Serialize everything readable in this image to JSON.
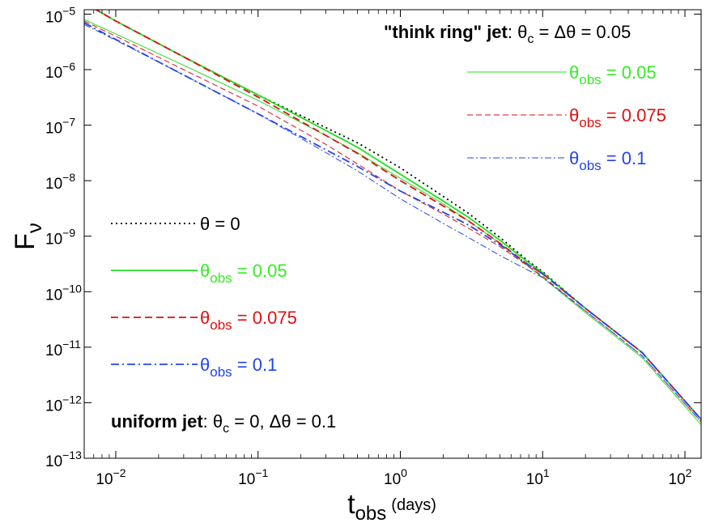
{
  "chart_data": {
    "type": "line",
    "xscale": "log",
    "yscale": "log",
    "xlim": [
      0.006,
      130
    ],
    "ylim": [
      1e-13,
      1.2e-05
    ],
    "xlabel": {
      "main": "t",
      "sub": "obs",
      "unit": "(days)"
    },
    "ylabel": {
      "main": "F",
      "sub": "ν"
    },
    "x_ticks": [
      {
        "value": 0.01,
        "base": "10",
        "exp": "−2"
      },
      {
        "value": 0.1,
        "base": "10",
        "exp": "−1"
      },
      {
        "value": 1,
        "base": "10",
        "exp": "0"
      },
      {
        "value": 10,
        "base": "10",
        "exp": "1"
      },
      {
        "value": 100,
        "base": "10",
        "exp": "2"
      }
    ],
    "y_ticks": [
      {
        "value": 1e-13,
        "base": "10",
        "exp": "−13"
      },
      {
        "value": 1e-12,
        "base": "10",
        "exp": "−12"
      },
      {
        "value": 1e-11,
        "base": "10",
        "exp": "−11"
      },
      {
        "value": 1e-10,
        "base": "10",
        "exp": "−10"
      },
      {
        "value": 1e-09,
        "base": "10",
        "exp": "−9"
      },
      {
        "value": 1e-08,
        "base": "10",
        "exp": "−8"
      },
      {
        "value": 1e-07,
        "base": "10",
        "exp": "−7"
      },
      {
        "value": 1e-06,
        "base": "10",
        "exp": "−6"
      },
      {
        "value": 1e-05,
        "base": "10",
        "exp": "−5"
      }
    ],
    "annotations": {
      "ring": {
        "bold": "\"think ring\" jet",
        "rest": ": θ",
        "sub": "c",
        "after": " = Δθ = 0.05"
      },
      "uniform": {
        "bold": "uniform jet",
        "rest": ": θ",
        "sub": "c",
        "after": " = 0, Δθ = 0.1"
      }
    },
    "series": [
      {
        "name": "uniform θobs = 0",
        "group": "uniform",
        "label_theta": "θ",
        "label_sub": "",
        "label_value": " = 0",
        "color": "#000000",
        "style": "dotted",
        "weight": "thick",
        "x": [
          0.006,
          0.01,
          0.03,
          0.1,
          0.3,
          0.5,
          1,
          2,
          3,
          5,
          8,
          10,
          20,
          50,
          130
        ],
        "y": [
          1.6e-05,
          7.5e-06,
          1.7e-06,
          3.5e-07,
          9e-08,
          4.8e-08,
          1.7e-08,
          5.2e-09,
          2.6e-09,
          9.5e-10,
          3.5e-10,
          2.3e-10,
          5e-11,
          8e-12,
          5e-13
        ]
      },
      {
        "name": "uniform θobs = 0.05",
        "group": "uniform",
        "label_theta": "θ",
        "label_sub": "obs",
        "label_value": " = 0.05",
        "color": "#22dd22",
        "style": "solid",
        "weight": "thick",
        "x": [
          0.006,
          0.01,
          0.03,
          0.1,
          0.3,
          0.5,
          1,
          2,
          3,
          5,
          8,
          10,
          20,
          50,
          130
        ],
        "y": [
          1.6e-05,
          7.5e-06,
          1.7e-06,
          3.5e-07,
          8e-08,
          4e-08,
          1.3e-08,
          4.3e-09,
          2.2e-09,
          8.5e-10,
          3.3e-10,
          2.2e-10,
          5e-11,
          8e-12,
          5e-13
        ]
      },
      {
        "name": "uniform θobs = 0.075",
        "group": "uniform",
        "label_theta": "θ",
        "label_sub": "obs",
        "label_value": " = 0.075",
        "color": "#dd1111",
        "style": "dashed",
        "weight": "thick",
        "x": [
          0.006,
          0.01,
          0.03,
          0.1,
          0.3,
          0.5,
          1,
          2,
          3,
          5,
          8,
          10,
          20,
          50,
          130
        ],
        "y": [
          1.6e-05,
          7.5e-06,
          1.7e-06,
          3.2e-07,
          6.5e-08,
          3.1e-08,
          1e-08,
          3.5e-09,
          1.9e-09,
          7.5e-10,
          3e-10,
          2.1e-10,
          5e-11,
          8e-12,
          5e-13
        ]
      },
      {
        "name": "uniform θobs = 0.1",
        "group": "uniform",
        "label_theta": "θ",
        "label_sub": "obs",
        "label_value": " = 0.1",
        "color": "#2244ee",
        "style": "dashdot",
        "weight": "thick",
        "x": [
          0.006,
          0.01,
          0.03,
          0.1,
          0.3,
          0.5,
          1,
          2,
          3,
          5,
          8,
          10,
          20,
          50,
          130
        ],
        "y": [
          7e-06,
          3.5e-06,
          8e-07,
          1.6e-07,
          3.6e-08,
          1.8e-08,
          6.5e-09,
          2.7e-09,
          1.6e-09,
          7e-10,
          3e-10,
          2.1e-10,
          5e-11,
          8e-12,
          5e-13
        ]
      },
      {
        "name": "ring θobs = 0.05",
        "group": "ring",
        "label_theta": "θ",
        "label_sub": "obs",
        "label_value": " = 0.05",
        "color": "#22dd22",
        "style": "solid",
        "weight": "thin",
        "x": [
          0.006,
          0.01,
          0.03,
          0.1,
          0.3,
          0.5,
          1,
          2,
          3,
          5,
          8,
          10,
          20,
          50,
          130
        ],
        "y": [
          8e-06,
          4.4e-06,
          1.2e-06,
          2.8e-07,
          6.5e-08,
          3.2e-08,
          1.1e-08,
          3.8e-09,
          1.9e-09,
          7.5e-10,
          2.8e-10,
          1.8e-10,
          4.2e-11,
          6.5e-12,
          4e-13
        ]
      },
      {
        "name": "ring θobs = 0.075",
        "group": "ring",
        "label_theta": "θ",
        "label_sub": "obs",
        "label_value": " = 0.075",
        "color": "#dd1111",
        "style": "dashed",
        "weight": "thin",
        "x": [
          0.006,
          0.01,
          0.03,
          0.1,
          0.3,
          0.5,
          1,
          2,
          3,
          5,
          8,
          10,
          20,
          50,
          130
        ],
        "y": [
          7.5e-06,
          4e-06,
          1e-06,
          2.2e-07,
          4.5e-08,
          2e-08,
          6.5e-09,
          2.5e-09,
          1.4e-09,
          6.5e-10,
          2.8e-10,
          1.9e-10,
          4.5e-11,
          7e-12,
          4.5e-13
        ]
      },
      {
        "name": "ring θobs = 0.1",
        "group": "ring",
        "label_theta": "θ",
        "label_sub": "obs",
        "label_value": " = 0.1",
        "color": "#2244ee",
        "style": "dashdot",
        "weight": "thin",
        "x": [
          0.006,
          0.01,
          0.03,
          0.1,
          0.3,
          0.5,
          1,
          2,
          3,
          5,
          8,
          10,
          20,
          50,
          130
        ],
        "y": [
          6.5e-06,
          3.4e-06,
          8e-07,
          1.6e-07,
          3.2e-08,
          1.5e-08,
          4.7e-09,
          1.7e-09,
          9.5e-10,
          4.5e-10,
          2.4e-10,
          1.8e-10,
          4.5e-11,
          7e-12,
          4.5e-13
        ]
      }
    ]
  }
}
